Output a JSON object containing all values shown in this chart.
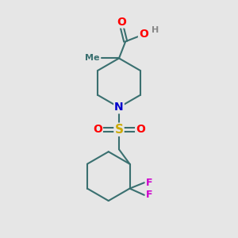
{
  "bg_color": "#e6e6e6",
  "bond_color": "#3a7070",
  "bond_width": 1.5,
  "atom_colors": {
    "O": "#ff0000",
    "N": "#0000cc",
    "S": "#ccaa00",
    "F": "#cc00cc",
    "H": "#888888",
    "C": "#3a7070"
  },
  "font_size": 9,
  "fig_size": [
    3.0,
    3.0
  ],
  "dpi": 100
}
